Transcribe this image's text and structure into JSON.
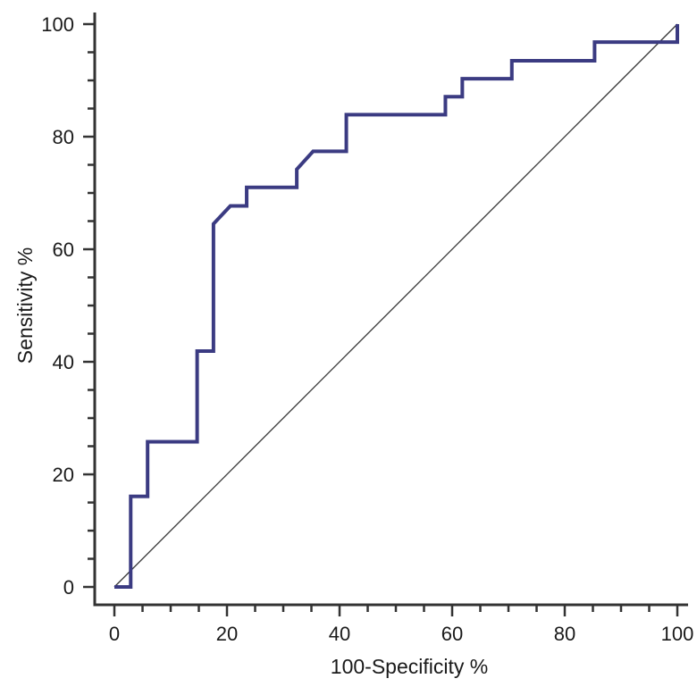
{
  "chart_data": {
    "type": "line",
    "xlabel": "100-Specificity %",
    "ylabel": "Sensitivity %",
    "xlim": [
      0,
      100
    ],
    "ylim": [
      0,
      100
    ],
    "x_ticks": [
      0,
      20,
      40,
      60,
      80,
      100
    ],
    "y_ticks": [
      0,
      20,
      40,
      60,
      80,
      100
    ],
    "minor_tick_step": 5,
    "grid": false,
    "series": [
      {
        "color": "#3b3b82",
        "points": [
          [
            0,
            0
          ],
          [
            2.9,
            0
          ],
          [
            2.9,
            16.1
          ],
          [
            5.9,
            16.1
          ],
          [
            5.9,
            25.8
          ],
          [
            14.7,
            25.8
          ],
          [
            14.7,
            41.9
          ],
          [
            17.6,
            41.9
          ],
          [
            17.6,
            64.5
          ],
          [
            20.6,
            67.7
          ],
          [
            23.5,
            67.7
          ],
          [
            23.5,
            71.0
          ],
          [
            32.4,
            71.0
          ],
          [
            32.4,
            74.2
          ],
          [
            35.3,
            77.4
          ],
          [
            41.2,
            77.4
          ],
          [
            41.2,
            83.9
          ],
          [
            58.8,
            83.9
          ],
          [
            58.8,
            87.1
          ],
          [
            61.8,
            87.1
          ],
          [
            61.8,
            90.3
          ],
          [
            70.6,
            90.3
          ],
          [
            70.6,
            93.5
          ],
          [
            85.3,
            93.5
          ],
          [
            85.3,
            96.8
          ],
          [
            100,
            96.8
          ],
          [
            100,
            100
          ]
        ]
      },
      {
        "color": "#333333",
        "points": [
          [
            0,
            0
          ],
          [
            100,
            100
          ]
        ]
      }
    ]
  }
}
